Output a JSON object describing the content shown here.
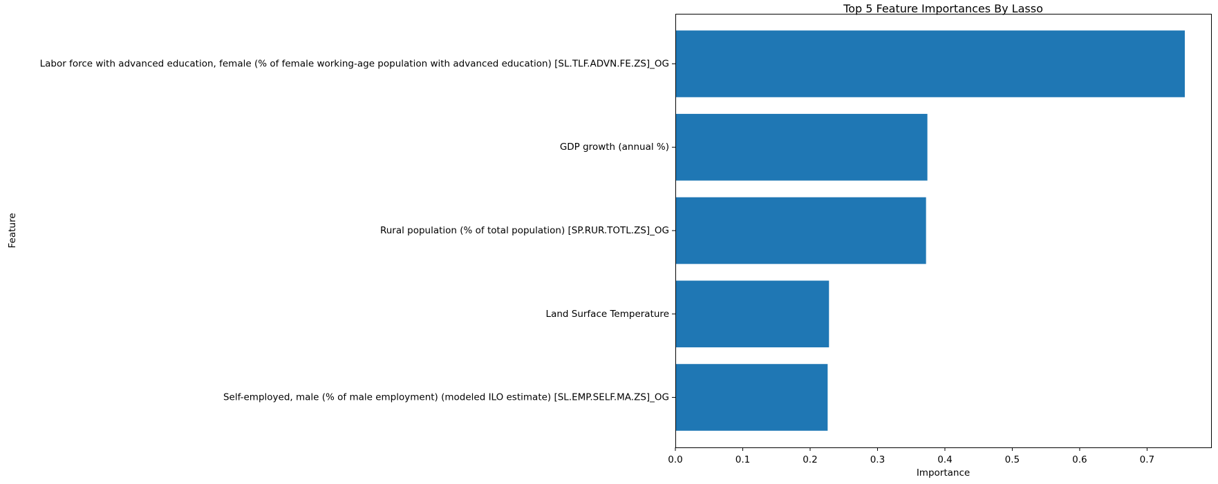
{
  "chart_data": {
    "type": "bar",
    "orientation": "horizontal",
    "title": "Top 5 Feature Importances By Lasso",
    "xlabel": "Importance",
    "ylabel": "Feature",
    "categories": [
      "Labor force with advanced education, female (% of female working-age population with advanced education) [SL.TLF.ADVN.FE.ZS]_OG",
      "GDP growth (annual %)",
      "Rural population (% of total population) [SP.RUR.TOTL.ZS]_OG",
      "Land Surface Temperature",
      "Self-employed, male (% of male employment) (modeled ILO estimate) [SL.EMP.SELF.MA.ZS]_OG"
    ],
    "values": [
      0.756,
      0.374,
      0.372,
      0.228,
      0.226
    ],
    "xlim": [
      0,
      0.795
    ],
    "xticks": [
      0.0,
      0.1,
      0.2,
      0.3,
      0.4,
      0.5,
      0.6,
      0.7
    ],
    "xtick_labels": [
      "0.0",
      "0.1",
      "0.2",
      "0.3",
      "0.4",
      "0.5",
      "0.6",
      "0.7"
    ],
    "grid": false,
    "bar_color": "#1f77b4"
  }
}
